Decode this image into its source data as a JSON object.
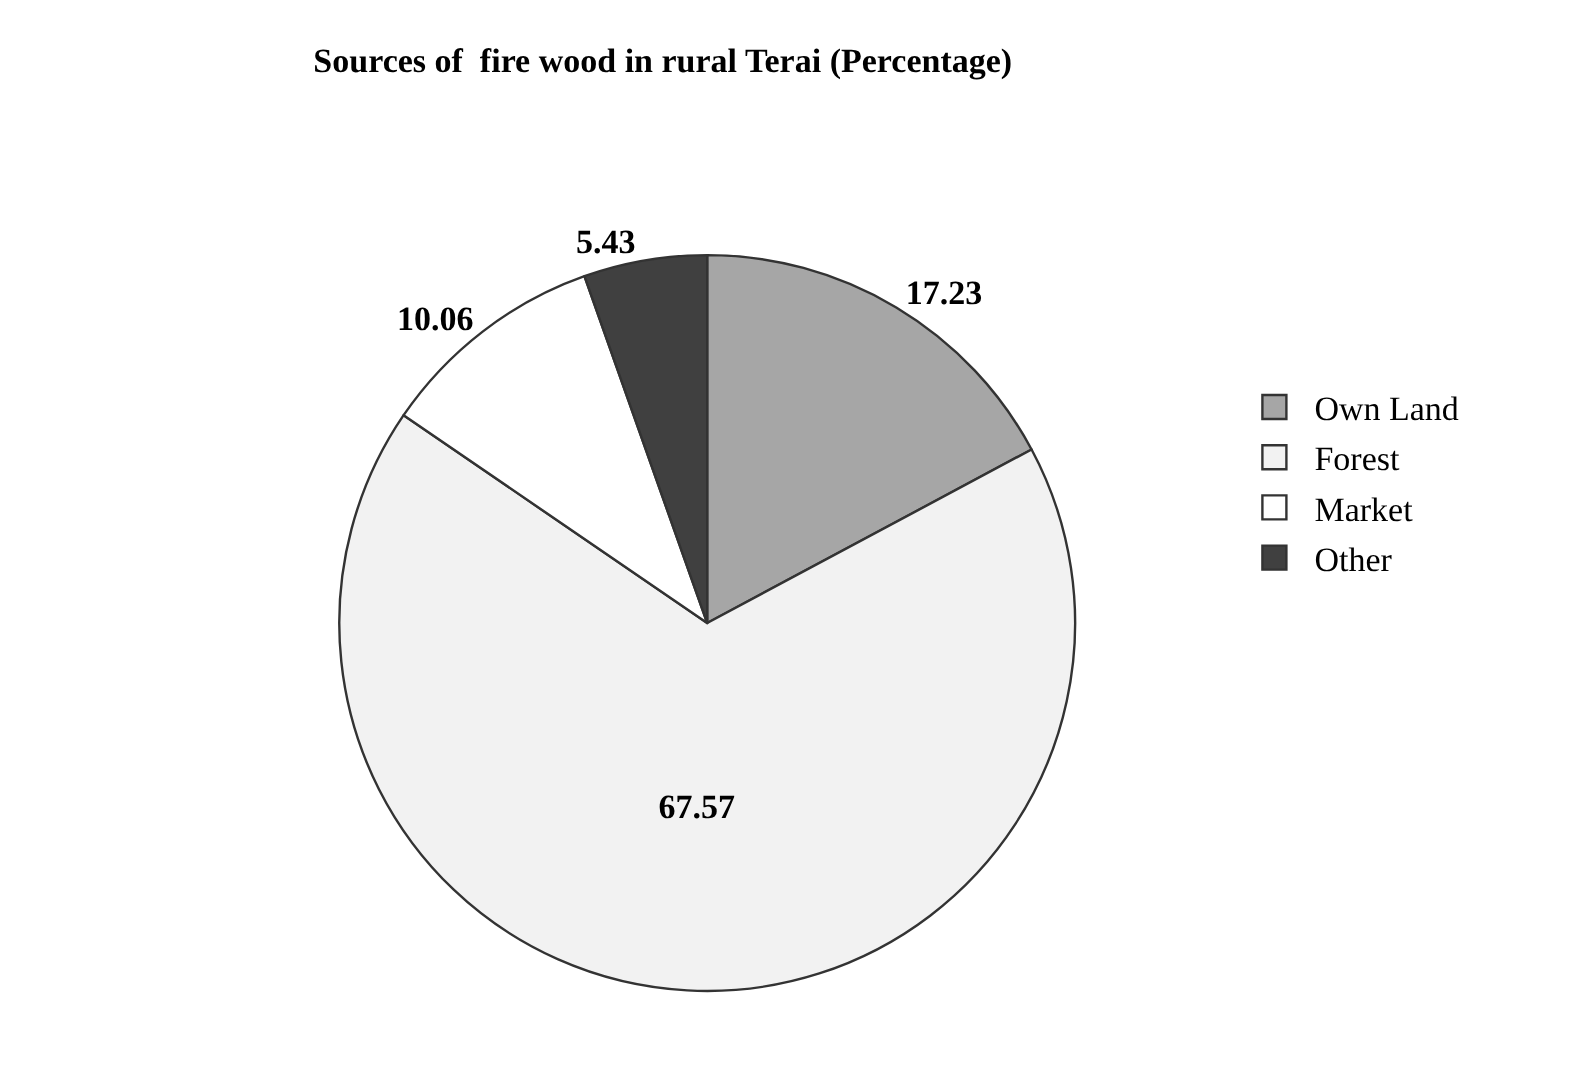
{
  "chart_data": {
    "type": "pie",
    "title": "Sources of  fire wood in rural Terai (Percentage)",
    "categories": [
      "Own Land",
      "Forest",
      "Market",
      "Other"
    ],
    "values": [
      17.23,
      67.57,
      10.06,
      5.43
    ],
    "colors": [
      "#a6a6a6",
      "#f2f2f2",
      "#ffffff",
      "#404040"
    ],
    "data_labels": true,
    "legend": "right"
  }
}
